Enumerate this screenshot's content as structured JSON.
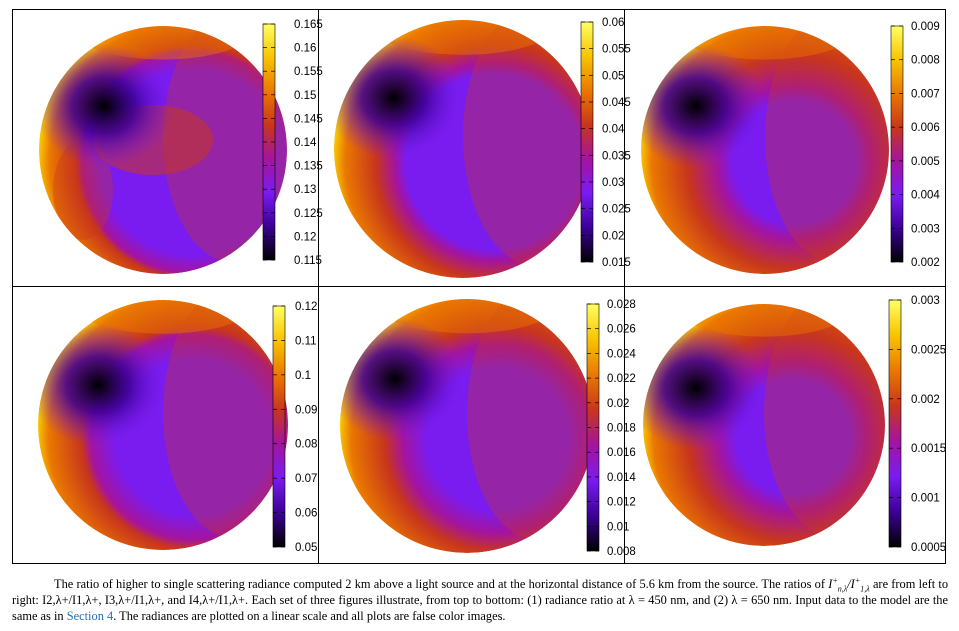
{
  "figure": {
    "panels": [
      {
        "name": "panel-n2-450",
        "ticks": [
          "0.165",
          "0.16",
          "0.155",
          "0.15",
          "0.145",
          "0.14",
          "0.135",
          "0.13",
          "0.125",
          "0.12",
          "0.115"
        ]
      },
      {
        "name": "panel-n3-450",
        "ticks": [
          "0.06",
          "0.055",
          "0.05",
          "0.045",
          "0.04",
          "0.035",
          "0.03",
          "0.025",
          "0.02",
          "0.015"
        ]
      },
      {
        "name": "panel-n4-450",
        "ticks": [
          "0.009",
          "0.008",
          "0.007",
          "0.006",
          "0.005",
          "0.004",
          "0.003",
          "0.002"
        ]
      },
      {
        "name": "panel-n2-650",
        "ticks": [
          "0.12",
          "0.11",
          "0.1",
          "0.09",
          "0.08",
          "0.07",
          "0.06",
          "0.05"
        ]
      },
      {
        "name": "panel-n3-650",
        "ticks": [
          "0.028",
          "0.026",
          "0.024",
          "0.022",
          "0.02",
          "0.018",
          "0.016",
          "0.014",
          "0.012",
          "0.01",
          "0.008"
        ]
      },
      {
        "name": "panel-n4-650",
        "ticks": [
          "0.003",
          "0.0025",
          "0.002",
          "0.0015",
          "0.001",
          "0.0005"
        ]
      }
    ],
    "colormap": [
      "#000000",
      "#3c0096",
      "#7a1cf0",
      "#a4149e",
      "#c8361c",
      "#ea7800",
      "#f8c400",
      "#ffff64"
    ]
  },
  "caption": {
    "part1": "The ratio of higher to single scattering radiance computed 2 km above a light source and at the horizontal distance of 5.6 km from the source. The ratios of ",
    "ratio_general": "I",
    "part2": " are from left to right: ",
    "ratio_list": "I2,λ+/I1,λ+, I3,λ+/I1,λ+, and I4,λ+/I1,λ+",
    "part3": ". Each set of three figures illustrate, from top to bottom: (1) radiance ratio at λ = 450 nm, and (2) λ = 650 nm. Input data to the model are the same as in ",
    "link": "Section 4",
    "part4": ". The radiances are plotted on a linear scale and all plots are false color images."
  }
}
